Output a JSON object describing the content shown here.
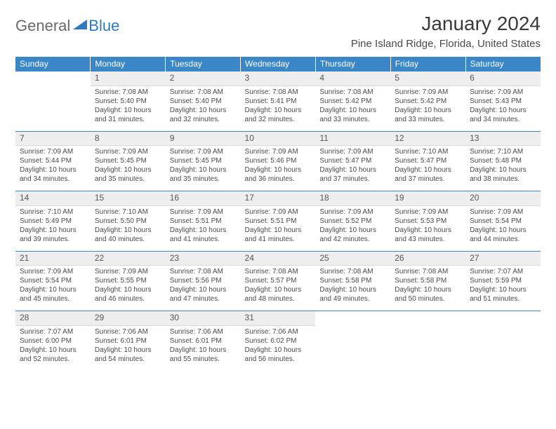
{
  "brand": {
    "part1": "General",
    "part2": "Blue"
  },
  "title": "January 2024",
  "location": "Pine Island Ridge, Florida, United States",
  "colors": {
    "header_bg": "#3b86c6",
    "header_text": "#ffffff",
    "daynum_bg": "#eeeeee",
    "rule": "#3b86c6",
    "body_text": "#4a4a4a",
    "logo_gray": "#6a6a6a",
    "logo_blue": "#2f7abf",
    "page_bg": "#ffffff"
  },
  "typography": {
    "title_fontsize": 28,
    "location_fontsize": 15,
    "weekday_fontsize": 12,
    "daynum_fontsize": 12,
    "cell_fontsize": 10
  },
  "layout": {
    "columns": 7,
    "rows": 5
  },
  "weekdays": [
    "Sunday",
    "Monday",
    "Tuesday",
    "Wednesday",
    "Thursday",
    "Friday",
    "Saturday"
  ],
  "weeks": [
    [
      null,
      {
        "n": "1",
        "sunrise": "Sunrise: 7:08 AM",
        "sunset": "Sunset: 5:40 PM",
        "daylight": "Daylight: 10 hours and 31 minutes."
      },
      {
        "n": "2",
        "sunrise": "Sunrise: 7:08 AM",
        "sunset": "Sunset: 5:40 PM",
        "daylight": "Daylight: 10 hours and 32 minutes."
      },
      {
        "n": "3",
        "sunrise": "Sunrise: 7:08 AM",
        "sunset": "Sunset: 5:41 PM",
        "daylight": "Daylight: 10 hours and 32 minutes."
      },
      {
        "n": "4",
        "sunrise": "Sunrise: 7:08 AM",
        "sunset": "Sunset: 5:42 PM",
        "daylight": "Daylight: 10 hours and 33 minutes."
      },
      {
        "n": "5",
        "sunrise": "Sunrise: 7:09 AM",
        "sunset": "Sunset: 5:42 PM",
        "daylight": "Daylight: 10 hours and 33 minutes."
      },
      {
        "n": "6",
        "sunrise": "Sunrise: 7:09 AM",
        "sunset": "Sunset: 5:43 PM",
        "daylight": "Daylight: 10 hours and 34 minutes."
      }
    ],
    [
      {
        "n": "7",
        "sunrise": "Sunrise: 7:09 AM",
        "sunset": "Sunset: 5:44 PM",
        "daylight": "Daylight: 10 hours and 34 minutes."
      },
      {
        "n": "8",
        "sunrise": "Sunrise: 7:09 AM",
        "sunset": "Sunset: 5:45 PM",
        "daylight": "Daylight: 10 hours and 35 minutes."
      },
      {
        "n": "9",
        "sunrise": "Sunrise: 7:09 AM",
        "sunset": "Sunset: 5:45 PM",
        "daylight": "Daylight: 10 hours and 35 minutes."
      },
      {
        "n": "10",
        "sunrise": "Sunrise: 7:09 AM",
        "sunset": "Sunset: 5:46 PM",
        "daylight": "Daylight: 10 hours and 36 minutes."
      },
      {
        "n": "11",
        "sunrise": "Sunrise: 7:09 AM",
        "sunset": "Sunset: 5:47 PM",
        "daylight": "Daylight: 10 hours and 37 minutes."
      },
      {
        "n": "12",
        "sunrise": "Sunrise: 7:10 AM",
        "sunset": "Sunset: 5:47 PM",
        "daylight": "Daylight: 10 hours and 37 minutes."
      },
      {
        "n": "13",
        "sunrise": "Sunrise: 7:10 AM",
        "sunset": "Sunset: 5:48 PM",
        "daylight": "Daylight: 10 hours and 38 minutes."
      }
    ],
    [
      {
        "n": "14",
        "sunrise": "Sunrise: 7:10 AM",
        "sunset": "Sunset: 5:49 PM",
        "daylight": "Daylight: 10 hours and 39 minutes."
      },
      {
        "n": "15",
        "sunrise": "Sunrise: 7:10 AM",
        "sunset": "Sunset: 5:50 PM",
        "daylight": "Daylight: 10 hours and 40 minutes."
      },
      {
        "n": "16",
        "sunrise": "Sunrise: 7:09 AM",
        "sunset": "Sunset: 5:51 PM",
        "daylight": "Daylight: 10 hours and 41 minutes."
      },
      {
        "n": "17",
        "sunrise": "Sunrise: 7:09 AM",
        "sunset": "Sunset: 5:51 PM",
        "daylight": "Daylight: 10 hours and 41 minutes."
      },
      {
        "n": "18",
        "sunrise": "Sunrise: 7:09 AM",
        "sunset": "Sunset: 5:52 PM",
        "daylight": "Daylight: 10 hours and 42 minutes."
      },
      {
        "n": "19",
        "sunrise": "Sunrise: 7:09 AM",
        "sunset": "Sunset: 5:53 PM",
        "daylight": "Daylight: 10 hours and 43 minutes."
      },
      {
        "n": "20",
        "sunrise": "Sunrise: 7:09 AM",
        "sunset": "Sunset: 5:54 PM",
        "daylight": "Daylight: 10 hours and 44 minutes."
      }
    ],
    [
      {
        "n": "21",
        "sunrise": "Sunrise: 7:09 AM",
        "sunset": "Sunset: 5:54 PM",
        "daylight": "Daylight: 10 hours and 45 minutes."
      },
      {
        "n": "22",
        "sunrise": "Sunrise: 7:09 AM",
        "sunset": "Sunset: 5:55 PM",
        "daylight": "Daylight: 10 hours and 46 minutes."
      },
      {
        "n": "23",
        "sunrise": "Sunrise: 7:08 AM",
        "sunset": "Sunset: 5:56 PM",
        "daylight": "Daylight: 10 hours and 47 minutes."
      },
      {
        "n": "24",
        "sunrise": "Sunrise: 7:08 AM",
        "sunset": "Sunset: 5:57 PM",
        "daylight": "Daylight: 10 hours and 48 minutes."
      },
      {
        "n": "25",
        "sunrise": "Sunrise: 7:08 AM",
        "sunset": "Sunset: 5:58 PM",
        "daylight": "Daylight: 10 hours and 49 minutes."
      },
      {
        "n": "26",
        "sunrise": "Sunrise: 7:08 AM",
        "sunset": "Sunset: 5:58 PM",
        "daylight": "Daylight: 10 hours and 50 minutes."
      },
      {
        "n": "27",
        "sunrise": "Sunrise: 7:07 AM",
        "sunset": "Sunset: 5:59 PM",
        "daylight": "Daylight: 10 hours and 51 minutes."
      }
    ],
    [
      {
        "n": "28",
        "sunrise": "Sunrise: 7:07 AM",
        "sunset": "Sunset: 6:00 PM",
        "daylight": "Daylight: 10 hours and 52 minutes."
      },
      {
        "n": "29",
        "sunrise": "Sunrise: 7:06 AM",
        "sunset": "Sunset: 6:01 PM",
        "daylight": "Daylight: 10 hours and 54 minutes."
      },
      {
        "n": "30",
        "sunrise": "Sunrise: 7:06 AM",
        "sunset": "Sunset: 6:01 PM",
        "daylight": "Daylight: 10 hours and 55 minutes."
      },
      {
        "n": "31",
        "sunrise": "Sunrise: 7:06 AM",
        "sunset": "Sunset: 6:02 PM",
        "daylight": "Daylight: 10 hours and 56 minutes."
      },
      null,
      null,
      null
    ]
  ]
}
